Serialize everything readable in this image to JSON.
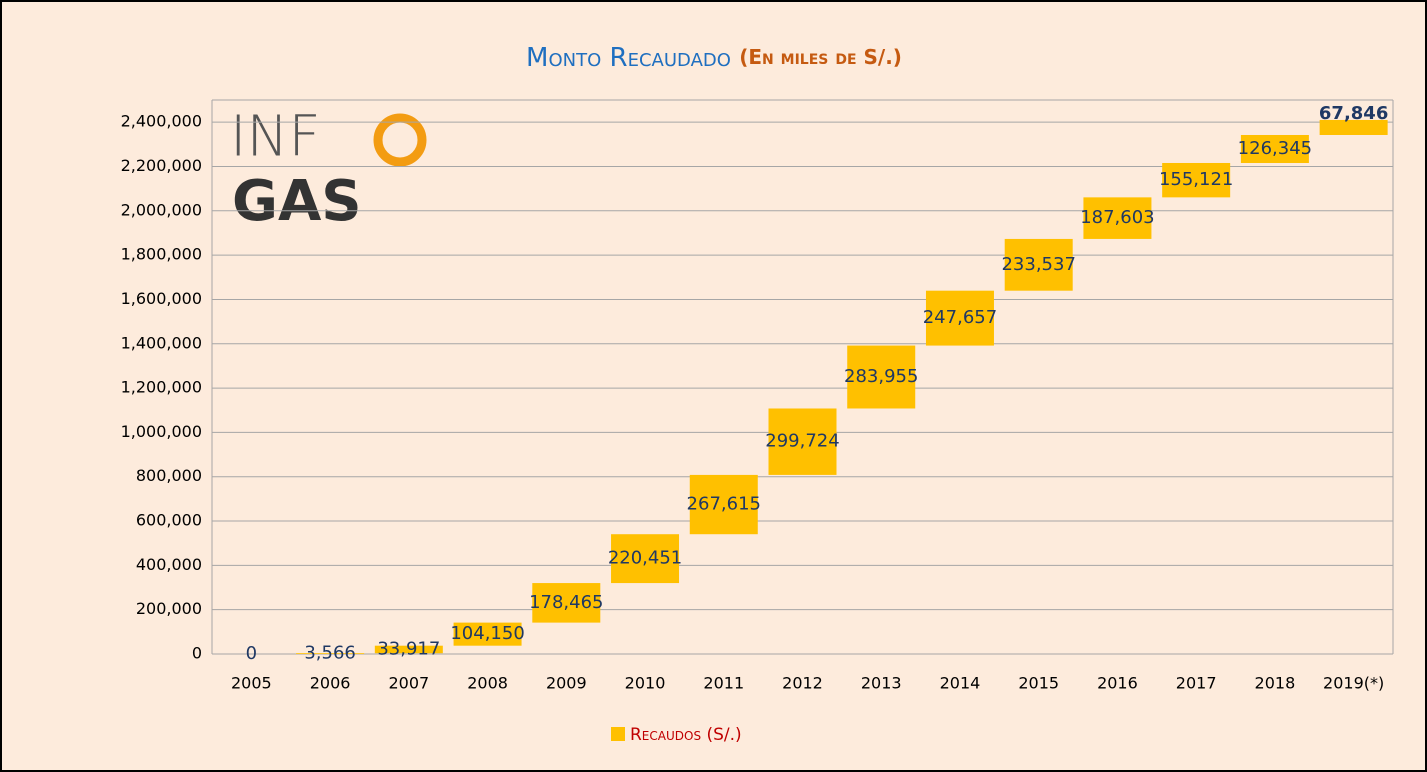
{
  "chart_data": {
    "type": "waterfall",
    "title": "Monto Recaudado",
    "subtitle": "(En miles de S/.)",
    "logo": {
      "top": "INF",
      "bottom": "GAS"
    },
    "categories": [
      "2005",
      "2006",
      "2007",
      "2008",
      "2009",
      "2010",
      "2011",
      "2012",
      "2013",
      "2014",
      "2015",
      "2016",
      "2017",
      "2018",
      "2019(*)"
    ],
    "series": [
      {
        "name": "Recaudos (S/.)",
        "color": "#ffc000",
        "values": [
          0,
          3566,
          33917,
          104150,
          178465,
          220451,
          267615,
          299724,
          283955,
          247657,
          233537,
          187603,
          155121,
          126345,
          67846
        ],
        "value_labels": [
          "0",
          "3,566",
          "33,917",
          "104,150",
          "178,465",
          "220,451",
          "267,615",
          "299,724",
          "283,955",
          "247,657",
          "233,537",
          "187,603",
          "155,121",
          "126,345",
          "67,846"
        ]
      }
    ],
    "ylim": [
      0,
      2500000
    ],
    "yticks": [
      0,
      {
        "value": 200000,
        "label": "200,000"
      },
      {
        "value": 400000,
        "label": "400,000"
      },
      {
        "value": 600000,
        "label": "600,000"
      },
      {
        "value": 800000,
        "label": "800,000"
      },
      {
        "value": 1000000,
        "label": "1,000,000"
      },
      {
        "value": 1200000,
        "label": "1,200,000"
      },
      {
        "value": 1400000,
        "label": "1,400,000"
      },
      {
        "value": 1600000,
        "label": "1,600,000"
      },
      {
        "value": 1800000,
        "label": "1,800,000"
      },
      {
        "value": 2000000,
        "label": "2,000,000"
      },
      {
        "value": 2200000,
        "label": "2,200,000"
      },
      {
        "value": 2400000,
        "label": "2,400,000"
      }
    ],
    "grid": true,
    "legend": "bottom"
  }
}
